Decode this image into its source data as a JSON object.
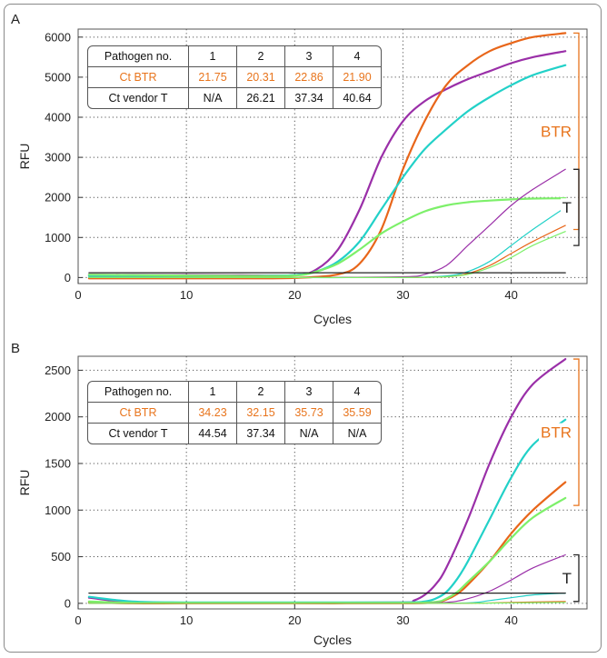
{
  "colors": {
    "purple": "#9a2fa8",
    "orange": "#e8661a",
    "cyan": "#22d1c8",
    "green": "#7df06a",
    "black": "#222222",
    "btr_accent": "#e8741c"
  },
  "chart_data": [
    {
      "type": "line",
      "panel": "A",
      "xlabel": "Cycles",
      "ylabel": "RFU",
      "xlim": [
        0,
        47
      ],
      "ylim": [
        -150,
        6200
      ],
      "xticks": [
        0,
        10,
        20,
        30,
        40
      ],
      "yticks": [
        0,
        1000,
        2000,
        3000,
        4000,
        5000,
        6000
      ],
      "grid": true,
      "bracket_labels": [
        {
          "label": "BTR",
          "range": [
            1200,
            6100
          ],
          "color": "#e8741c"
        },
        {
          "label": "T",
          "range": [
            800,
            2700
          ],
          "color": "#222222"
        }
      ],
      "table": {
        "header": [
          "Pathogen no.",
          "1",
          "2",
          "3",
          "4"
        ],
        "rows": [
          {
            "label": "Ct BTR",
            "values": [
              "21.75",
              "20.31",
              "22.86",
              "21.90"
            ],
            "accent": true
          },
          {
            "label": "Ct vendor T",
            "values": [
              "N/A",
              "26.21",
              "37.34",
              "40.64"
            ],
            "accent": false
          }
        ]
      },
      "series": [
        {
          "color": "purple",
          "width": 2.2,
          "x": [
            1,
            5,
            10,
            15,
            20,
            22,
            24,
            26,
            28,
            30,
            32,
            34,
            36,
            38,
            40,
            42,
            45
          ],
          "y": [
            70,
            65,
            60,
            55,
            60,
            200,
            700,
            1700,
            3000,
            3900,
            4400,
            4700,
            4950,
            5150,
            5350,
            5500,
            5650
          ]
        },
        {
          "color": "orange",
          "width": 2.2,
          "x": [
            1,
            5,
            10,
            15,
            20,
            24,
            26,
            28,
            30,
            32,
            34,
            36,
            38,
            40,
            42,
            45
          ],
          "y": [
            -20,
            -20,
            -20,
            -20,
            -10,
            80,
            350,
            1200,
            2700,
            3900,
            4800,
            5300,
            5650,
            5850,
            6000,
            6100
          ]
        },
        {
          "color": "cyan",
          "width": 2.2,
          "x": [
            1,
            5,
            10,
            15,
            20,
            22,
            24,
            26,
            28,
            30,
            32,
            34,
            36,
            38,
            40,
            42,
            45
          ],
          "y": [
            40,
            40,
            40,
            40,
            60,
            150,
            400,
            900,
            1700,
            2500,
            3200,
            3700,
            4150,
            4500,
            4800,
            5050,
            5300
          ]
        },
        {
          "color": "green",
          "width": 2.2,
          "x": [
            1,
            5,
            10,
            15,
            20,
            22,
            24,
            26,
            28,
            30,
            32,
            34,
            36,
            38,
            40,
            42,
            45
          ],
          "y": [
            70,
            60,
            50,
            40,
            50,
            150,
            350,
            700,
            1100,
            1400,
            1650,
            1800,
            1880,
            1920,
            1950,
            1970,
            1980
          ]
        },
        {
          "color": "purple",
          "width": 1.2,
          "x": [
            1,
            10,
            20,
            30,
            32,
            34,
            36,
            38,
            40,
            42,
            45
          ],
          "y": [
            0,
            0,
            0,
            20,
            80,
            300,
            800,
            1300,
            1800,
            2200,
            2700
          ]
        },
        {
          "color": "cyan",
          "width": 1.2,
          "x": [
            1,
            10,
            20,
            30,
            34,
            36,
            38,
            40,
            42,
            45
          ],
          "y": [
            0,
            0,
            0,
            0,
            40,
            150,
            400,
            800,
            1200,
            1750
          ]
        },
        {
          "color": "orange",
          "width": 1.2,
          "x": [
            1,
            10,
            20,
            30,
            34,
            36,
            38,
            40,
            42,
            45
          ],
          "y": [
            0,
            0,
            0,
            0,
            20,
            100,
            300,
            600,
            900,
            1300
          ]
        },
        {
          "color": "green",
          "width": 1.2,
          "x": [
            1,
            10,
            20,
            30,
            34,
            36,
            38,
            40,
            42,
            45
          ],
          "y": [
            0,
            0,
            0,
            0,
            20,
            80,
            250,
            500,
            800,
            1150
          ]
        },
        {
          "color": "black",
          "width": 1.2,
          "x": [
            1,
            45
          ],
          "y": [
            120,
            120
          ]
        }
      ]
    },
    {
      "type": "line",
      "panel": "B",
      "xlabel": "Cycles",
      "ylabel": "RFU",
      "xlim": [
        0,
        47
      ],
      "ylim": [
        -60,
        2650
      ],
      "xticks": [
        0,
        10,
        20,
        30,
        40
      ],
      "yticks": [
        0,
        500,
        1000,
        1500,
        2000,
        2500
      ],
      "grid": true,
      "bracket_labels": [
        {
          "label": "BTR",
          "range": [
            1050,
            2620
          ],
          "color": "#e8741c"
        },
        {
          "label": "T",
          "range": [
            20,
            520
          ],
          "color": "#222222"
        }
      ],
      "table": {
        "header": [
          "Pathogen no.",
          "1",
          "2",
          "3",
          "4"
        ],
        "rows": [
          {
            "label": "Ct BTR",
            "values": [
              "34.23",
              "32.15",
              "35.73",
              "35.59"
            ],
            "accent": true
          },
          {
            "label": "Ct vendor T",
            "values": [
              "44.54",
              "37.34",
              "N/A",
              "N/A"
            ],
            "accent": false
          }
        ]
      },
      "series": [
        {
          "color": "purple",
          "width": 2.2,
          "x": [
            1,
            5,
            10,
            20,
            30,
            31,
            32,
            33,
            34,
            36,
            38,
            40,
            42,
            45
          ],
          "y": [
            60,
            10,
            5,
            5,
            10,
            30,
            90,
            200,
            380,
            900,
            1500,
            2000,
            2350,
            2620
          ]
        },
        {
          "color": "cyan",
          "width": 2.2,
          "x": [
            1,
            5,
            10,
            20,
            30,
            32,
            33,
            34,
            35,
            36,
            38,
            40,
            42,
            45
          ],
          "y": [
            70,
            20,
            10,
            10,
            10,
            20,
            50,
            120,
            260,
            450,
            900,
            1350,
            1700,
            1970
          ]
        },
        {
          "color": "orange",
          "width": 2.2,
          "x": [
            1,
            5,
            10,
            20,
            30,
            33,
            34,
            35,
            36,
            38,
            40,
            42,
            45
          ],
          "y": [
            10,
            0,
            0,
            0,
            0,
            10,
            40,
            100,
            200,
            450,
            750,
            1000,
            1300
          ]
        },
        {
          "color": "green",
          "width": 2.2,
          "x": [
            1,
            5,
            10,
            20,
            30,
            33,
            34,
            35,
            36,
            38,
            40,
            42,
            45
          ],
          "y": [
            20,
            5,
            5,
            5,
            5,
            15,
            50,
            120,
            230,
            450,
            700,
            920,
            1130
          ]
        },
        {
          "color": "purple",
          "width": 1.2,
          "x": [
            1,
            10,
            20,
            30,
            34,
            36,
            38,
            40,
            42,
            45
          ],
          "y": [
            0,
            0,
            0,
            0,
            10,
            50,
            130,
            250,
            380,
            520
          ]
        },
        {
          "color": "cyan",
          "width": 1.2,
          "x": [
            1,
            10,
            20,
            30,
            36,
            38,
            40,
            42,
            45
          ],
          "y": [
            0,
            0,
            0,
            0,
            5,
            30,
            60,
            90,
            110
          ]
        },
        {
          "color": "orange",
          "width": 1.2,
          "x": [
            1,
            10,
            20,
            30,
            36,
            40,
            45
          ],
          "y": [
            0,
            0,
            0,
            0,
            0,
            10,
            20
          ]
        },
        {
          "color": "green",
          "width": 1.2,
          "x": [
            1,
            10,
            20,
            30,
            36,
            40,
            45
          ],
          "y": [
            0,
            0,
            0,
            0,
            0,
            5,
            10
          ]
        },
        {
          "color": "black",
          "width": 1.2,
          "x": [
            1,
            45
          ],
          "y": [
            110,
            110
          ]
        }
      ]
    }
  ]
}
